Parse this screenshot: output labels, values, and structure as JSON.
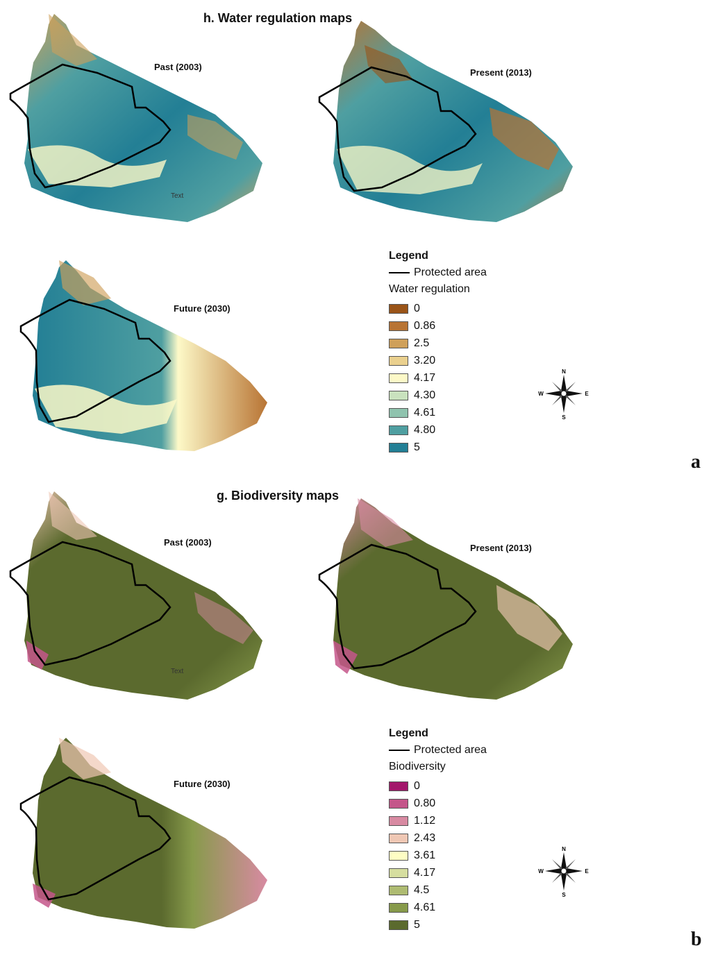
{
  "panel_a": {
    "title": "h. Water regulation maps",
    "letter": "a",
    "map_labels": [
      "Past (2003)",
      "Present (2013)",
      "Future (2030)"
    ],
    "map_stray_text": "Text",
    "legend": {
      "heading": "Legend",
      "protected_area": "Protected area",
      "variable": "Water regulation",
      "items": [
        {
          "label": "0",
          "color": "#9a5418"
        },
        {
          "label": "0.86",
          "color": "#b87434"
        },
        {
          "label": "2.5",
          "color": "#cfa05a"
        },
        {
          "label": "3.20",
          "color": "#ead08e"
        },
        {
          "label": "4.17",
          "color": "#fdf9c8"
        },
        {
          "label": "4.30",
          "color": "#c9e2be"
        },
        {
          "label": "4.61",
          "color": "#8fc3ae"
        },
        {
          "label": "4.80",
          "color": "#4f9fa1"
        },
        {
          "label": "5",
          "color": "#237f95"
        }
      ]
    },
    "compass": {
      "n": "N",
      "s": "S",
      "e": "E",
      "w": "W"
    }
  },
  "panel_b": {
    "title": "g. Biodiversity maps",
    "letter": "b",
    "map_labels": [
      "Past (2003)",
      "Present (2013)",
      "Future (2030)"
    ],
    "map_stray_text": "Text",
    "legend": {
      "heading": "Legend",
      "protected_area": "Protected area",
      "variable": "Biodiversity",
      "items": [
        {
          "label": "0",
          "color": "#a3176b"
        },
        {
          "label": "0.80",
          "color": "#c4568a"
        },
        {
          "label": "1.12",
          "color": "#d88aa2"
        },
        {
          "label": "2.43",
          "color": "#efc7b4"
        },
        {
          "label": "3.61",
          "color": "#fefdc4"
        },
        {
          "label": "4.17",
          "color": "#d6dea0"
        },
        {
          "label": "4.5",
          "color": "#aebb72"
        },
        {
          "label": "4.61",
          "color": "#879a4b"
        },
        {
          "label": "5",
          "color": "#5b6a2e"
        }
      ]
    },
    "compass": {
      "n": "N",
      "s": "S",
      "e": "E",
      "w": "W"
    }
  }
}
